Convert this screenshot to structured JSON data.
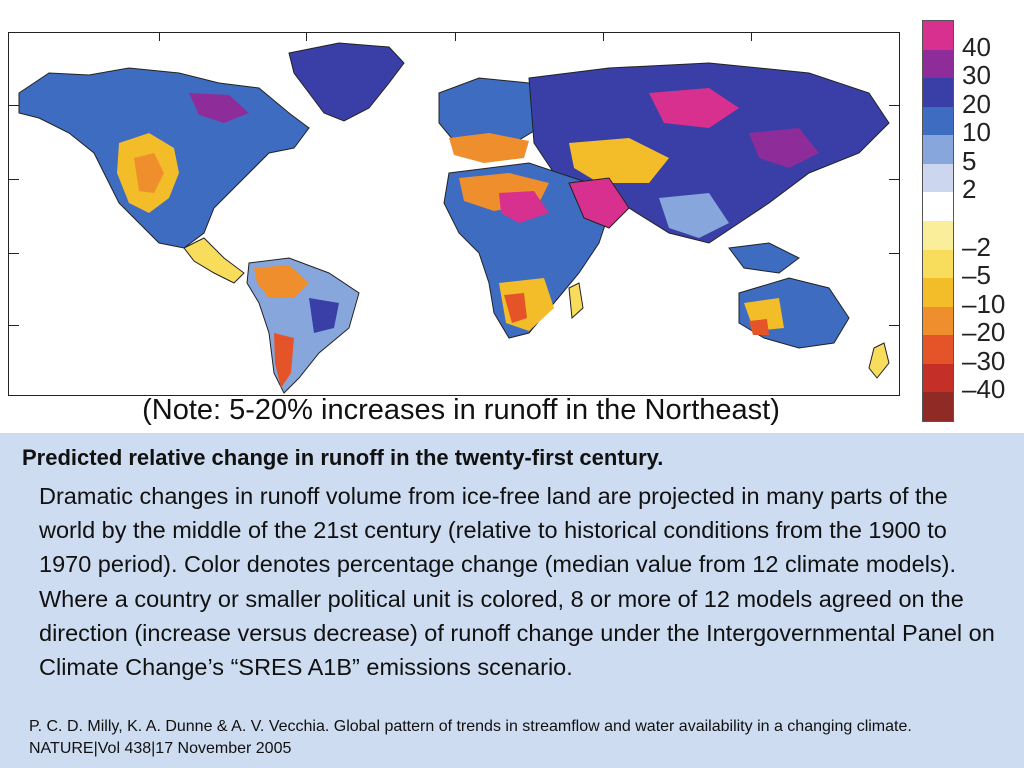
{
  "legend": {
    "items": [
      {
        "label": "40",
        "color": "#d8308e"
      },
      {
        "label": "30",
        "color": "#8e2d9a"
      },
      {
        "label": "20",
        "color": "#3a3fa8"
      },
      {
        "label": "10",
        "color": "#3e6cc0"
      },
      {
        "label": "5",
        "color": "#86a6dc"
      },
      {
        "label": "2",
        "color": "#ccd6ef"
      },
      {
        "label": "",
        "color": "#ffffff"
      },
      {
        "label": "–2",
        "color": "#fbee9a"
      },
      {
        "label": "–5",
        "color": "#f8dc5c"
      },
      {
        "label": "–10",
        "color": "#f2bd29"
      },
      {
        "label": "–20",
        "color": "#ef8e2c"
      },
      {
        "label": "–30",
        "color": "#e55428"
      },
      {
        "label": "–40",
        "color": "#c42f27"
      },
      {
        "label": "",
        "color": "#8f2a24"
      }
    ]
  },
  "note": "(Note: 5-20% increases in runoff in the Northeast)",
  "caption": {
    "title": "Predicted relative change in runoff in the twenty-first century.",
    "body": "Dramatic changes in runoff volume from ice-free land are projected in many parts of the world by the middle of the 21st century (relative to historical conditions from the 1900 to 1970 period). Color denotes percentage change (median value from 12 climate models). Where a country or smaller political unit is colored, 8 or more of 12 models agreed on the direction (increase versus decrease) of runoff change under the Intergovernmental Panel on Climate Change’s “SRES A1B” emissions scenario.",
    "citation": "P. C. D. Milly, K. A. Dunne & A. V. Vecchia.  Global pattern of trends in streamflow and water availability in a changing climate.  NATURE|Vol 438|17 November 2005"
  }
}
